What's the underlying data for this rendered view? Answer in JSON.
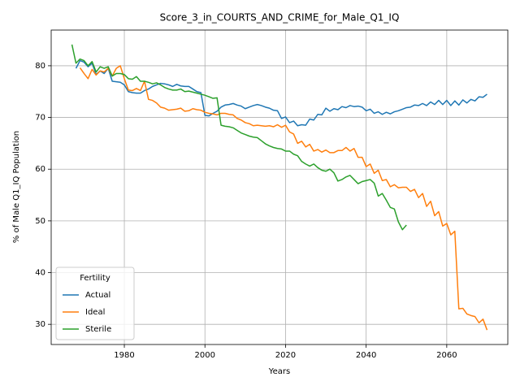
{
  "chart_data": {
    "type": "line",
    "title": "Score_3_in_COURTS_AND_CRIME_for_Male_Q1_IQ",
    "xlabel": "Years",
    "ylabel": "% of Male Q1_IQ Population",
    "legend_title": "Fertility",
    "legend_loc": "lower left",
    "grid": true,
    "xlim": [
      1961.85,
      2075.15
    ],
    "ylim": [
      26.1,
      86.9
    ],
    "xticks": [
      1980,
      2000,
      2020,
      2040,
      2060
    ],
    "yticks": [
      30,
      40,
      50,
      60,
      70,
      80
    ],
    "x": [
      1967,
      1968,
      1969,
      1970,
      1971,
      1972,
      1973,
      1974,
      1975,
      1976,
      1977,
      1978,
      1979,
      1980,
      1981,
      1982,
      1983,
      1984,
      1985,
      1986,
      1987,
      1988,
      1989,
      1990,
      1991,
      1992,
      1993,
      1994,
      1995,
      1996,
      1997,
      1998,
      1999,
      2000,
      2001,
      2002,
      2003,
      2004,
      2005,
      2006,
      2007,
      2008,
      2009,
      2010,
      2011,
      2012,
      2013,
      2014,
      2015,
      2016,
      2017,
      2018,
      2019,
      2020,
      2021,
      2022,
      2023,
      2024,
      2025,
      2026,
      2027,
      2028,
      2029,
      2030,
      2031,
      2032,
      2033,
      2034,
      2035,
      2036,
      2037,
      2038,
      2039,
      2040,
      2041,
      2042,
      2043,
      2044,
      2045,
      2046,
      2047,
      2048,
      2049,
      2050,
      2051,
      2052,
      2053,
      2054,
      2055,
      2056,
      2057,
      2058,
      2059,
      2060,
      2061,
      2062,
      2063,
      2064,
      2065,
      2066,
      2067,
      2068,
      2069,
      2070
    ],
    "series": [
      {
        "name": "Actual",
        "color": "#1f77b4",
        "values": [
          null,
          79.5,
          81.0,
          80.7,
          79.8,
          80.5,
          78.3,
          79.0,
          78.5,
          79.5,
          77.0,
          76.9,
          76.8,
          76.3,
          75.0,
          74.8,
          74.7,
          74.7,
          75.2,
          75.5,
          76.0,
          76.3,
          76.6,
          76.5,
          76.3,
          76.0,
          76.4,
          76.1,
          76.0,
          76.0,
          75.5,
          75.0,
          74.8,
          70.4,
          70.3,
          70.8,
          71.2,
          72.0,
          72.4,
          72.5,
          72.7,
          72.4,
          72.2,
          71.7,
          72.0,
          72.3,
          72.5,
          72.3,
          72.0,
          71.8,
          71.4,
          71.3,
          69.8,
          70.1,
          69.0,
          69.3,
          68.4,
          68.6,
          68.5,
          69.7,
          69.5,
          70.6,
          70.5,
          71.8,
          71.2,
          71.7,
          71.5,
          72.1,
          71.9,
          72.3,
          72.1,
          72.2,
          72.0,
          71.3,
          71.6,
          70.8,
          71.1,
          70.6,
          71.0,
          70.7,
          71.1,
          71.3,
          71.6,
          71.9,
          72.0,
          72.4,
          72.3,
          72.7,
          72.3,
          73.0,
          72.5,
          73.3,
          72.5,
          73.3,
          72.3,
          73.2,
          72.4,
          73.4,
          72.8,
          73.5,
          73.2,
          74.0,
          73.9,
          74.5
        ]
      },
      {
        "name": "Ideal",
        "color": "#ff7f0e",
        "values": [
          null,
          null,
          79.6,
          78.5,
          77.5,
          79.3,
          78.2,
          79.0,
          78.8,
          79.5,
          78.0,
          79.5,
          80.0,
          77.5,
          75.3,
          75.2,
          75.6,
          75.2,
          77.0,
          73.5,
          73.3,
          72.8,
          72.0,
          71.8,
          71.4,
          71.5,
          71.6,
          71.8,
          71.2,
          71.3,
          71.7,
          71.5,
          71.4,
          71.0,
          70.8,
          70.7,
          70.5,
          70.8,
          70.8,
          70.6,
          70.5,
          69.8,
          69.5,
          69.0,
          68.8,
          68.4,
          68.5,
          68.4,
          68.3,
          68.4,
          68.2,
          68.6,
          68.1,
          68.5,
          67.2,
          66.8,
          65.0,
          65.4,
          64.3,
          64.8,
          63.5,
          63.8,
          63.3,
          63.7,
          63.2,
          63.2,
          63.6,
          63.6,
          64.2,
          63.5,
          64.0,
          62.3,
          62.3,
          60.5,
          61.0,
          59.2,
          59.8,
          57.8,
          58.0,
          56.6,
          57.0,
          56.4,
          56.5,
          56.5,
          55.7,
          56.1,
          54.5,
          55.3,
          52.8,
          53.8,
          51.0,
          51.8,
          49.0,
          49.5,
          47.3,
          48.0,
          33.0,
          33.1,
          32.0,
          31.7,
          31.5,
          30.3,
          31.0,
          28.9
        ]
      },
      {
        "name": "Sterile",
        "color": "#2ca02c",
        "values": [
          84.1,
          80.5,
          81.3,
          81.0,
          80.0,
          80.8,
          78.8,
          79.8,
          79.5,
          79.8,
          78.0,
          78.5,
          78.5,
          78.3,
          77.5,
          77.4,
          77.9,
          77.0,
          77.0,
          76.8,
          76.5,
          76.7,
          76.3,
          75.8,
          75.5,
          75.3,
          75.3,
          75.5,
          75.0,
          75.1,
          74.9,
          74.7,
          74.5,
          74.3,
          74.0,
          73.7,
          73.8,
          68.5,
          68.3,
          68.2,
          68.0,
          67.5,
          67.0,
          66.7,
          66.4,
          66.2,
          66.1,
          65.5,
          64.9,
          64.5,
          64.2,
          64.0,
          63.9,
          63.5,
          63.5,
          62.9,
          62.6,
          61.5,
          61.0,
          60.6,
          61.0,
          60.3,
          59.8,
          59.6,
          60.0,
          59.3,
          57.7,
          58.0,
          58.5,
          58.8,
          58.0,
          57.2,
          57.6,
          57.8,
          58.0,
          57.3,
          54.8,
          55.3,
          54.0,
          52.6,
          52.3,
          49.8,
          48.3,
          49.2,
          null,
          null,
          null,
          null,
          null,
          null,
          null,
          null,
          null,
          null,
          null,
          null,
          null,
          null,
          null,
          null,
          null,
          null,
          null,
          null
        ]
      }
    ]
  }
}
